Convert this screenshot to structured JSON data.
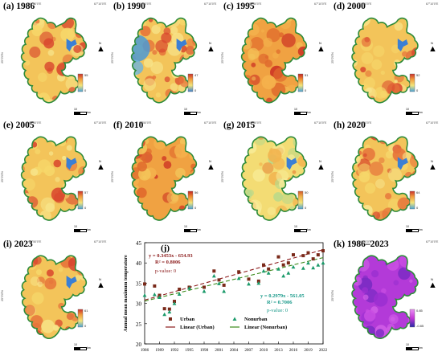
{
  "panels": [
    {
      "id": "1986",
      "label": "(a) 1986",
      "legend_max": "55",
      "legend_min": "0",
      "scale": "10",
      "scale_unit": "km",
      "palette": "heat"
    },
    {
      "id": "1990",
      "label": "(b) 1990",
      "legend_max": "47",
      "legend_min": "0",
      "scale": "10",
      "scale_unit": "km",
      "palette": "heat-cool"
    },
    {
      "id": "1995",
      "label": "(c) 1995",
      "legend_max": "51",
      "legend_min": "0",
      "scale": "10",
      "scale_unit": "km",
      "palette": "hot"
    },
    {
      "id": "2000",
      "label": "(d) 2000",
      "legend_max": "52",
      "legend_min": "0",
      "scale": "10",
      "scale_unit": "km",
      "palette": "heat"
    },
    {
      "id": "2005",
      "label": "(e) 2005",
      "legend_max": "57",
      "legend_min": "0",
      "scale": "10",
      "scale_unit": "km",
      "palette": "heat"
    },
    {
      "id": "2010",
      "label": "(f) 2010",
      "legend_max": "56",
      "legend_min": "0",
      "scale": "10",
      "scale_unit": "km",
      "palette": "hot"
    },
    {
      "id": "2015",
      "label": "(g) 2015",
      "legend_max": "50",
      "legend_min": "0",
      "scale": "10",
      "scale_unit": "km",
      "palette": "mild"
    },
    {
      "id": "2020",
      "label": "(h) 2020",
      "legend_max": "64",
      "legend_min": "0",
      "scale": "10",
      "scale_unit": "km",
      "palette": "heat"
    },
    {
      "id": "2023",
      "label": "(i) 2023",
      "legend_max": "61",
      "legend_min": "0",
      "scale": "10",
      "scale_unit": "km",
      "palette": "heat"
    },
    {
      "id": "trend",
      "label": "(k) 1986–2023",
      "legend_max": "0.85",
      "legend_min": "-0.85",
      "scale": "10",
      "scale_unit": "km",
      "palette": "purple"
    }
  ],
  "coords": {
    "lon_left": "66°50'0\"E",
    "lon_right": "67°10'0\"E",
    "lat": "25°0'0\"N"
  },
  "north_label": "N",
  "chart_data": {
    "type": "scatter",
    "panel_label": "(j)",
    "ylabel": "Annual mean maximum temperature",
    "xlim": [
      1986,
      2022
    ],
    "ylim": [
      20,
      45
    ],
    "x_ticks": [
      1986,
      1989,
      1992,
      1995,
      1998,
      2001,
      2004,
      2007,
      2010,
      2013,
      2016,
      2019,
      2022
    ],
    "y_ticks": [
      20,
      25,
      30,
      35,
      40,
      45
    ],
    "series": [
      {
        "name": "Urban",
        "marker": "square",
        "color": "#7a2a1a",
        "x": [
          1986,
          1988,
          1989,
          1990,
          1991,
          1992,
          1993,
          1995,
          1998,
          2000,
          2001,
          2002,
          2005,
          2007,
          2009,
          2010,
          2011,
          2013,
          2014,
          2015,
          2016,
          2018,
          2019,
          2020,
          2021,
          2022
        ],
        "y": [
          34.8,
          34.3,
          32.0,
          28.7,
          28.6,
          30.5,
          33.5,
          34.0,
          34.0,
          38.0,
          35.8,
          34.5,
          37.8,
          36.0,
          35.5,
          39.5,
          38.5,
          41.5,
          39.5,
          40.0,
          42.0,
          41.8,
          42.5,
          41.0,
          42.0,
          43.0
        ]
      },
      {
        "name": "Nonurban",
        "marker": "triangle",
        "color": "#1a9a6a",
        "x": [
          1986,
          1988,
          1989,
          1990,
          1991,
          1992,
          1993,
          1995,
          1998,
          2000,
          2001,
          2002,
          2005,
          2007,
          2009,
          2010,
          2011,
          2013,
          2014,
          2015,
          2016,
          2018,
          2019,
          2020,
          2021,
          2022
        ],
        "y": [
          32.0,
          32.2,
          31.5,
          27.3,
          27.9,
          30.0,
          32.3,
          33.8,
          33.0,
          36.8,
          34.9,
          33.0,
          36.2,
          34.8,
          35.0,
          38.0,
          37.5,
          38.5,
          36.8,
          37.5,
          39.0,
          38.7,
          40.0,
          38.8,
          39.5,
          40.0
        ]
      }
    ],
    "fits": [
      {
        "name": "Linear (Urban)",
        "color": "#8b1a1a",
        "dash": "5,3",
        "slope": 0.3453,
        "intercept": -654.93,
        "equation": "y = 0.3453x - 654.93",
        "r2": "R² = 0.8006",
        "p": "p-value: 0"
      },
      {
        "name": "Linear (Nonurban)",
        "color": "#3a8a1a",
        "dash": "5,3",
        "slope": 0.2979,
        "intercept": -561.05,
        "equation": "y = 0.2979x - 561.05",
        "r2": "R² = 0.7006",
        "p": "p-value: 0"
      }
    ],
    "legend_position": "bottom-center",
    "grid": false
  }
}
